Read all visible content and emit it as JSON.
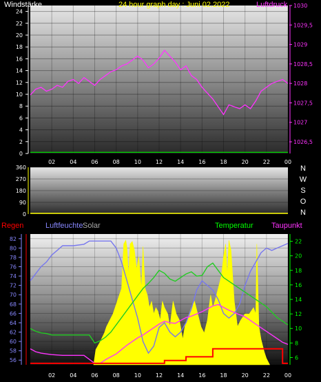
{
  "chart_data": [
    {
      "type": "line",
      "title": "24 hour graph day : Juni 02.2022",
      "left_axis_label": "Windstärke",
      "right_axis_label": "Luftdruck",
      "left_ticks": [
        "24",
        "22",
        "20",
        "18",
        "16",
        "14",
        "12",
        "10",
        "8",
        "6",
        "4",
        "2",
        "0"
      ],
      "left_range": [
        0,
        25
      ],
      "right_ticks": [
        "1030",
        "1029,5",
        "1029",
        "1028,5",
        "1028",
        "1027,5",
        "1027",
        "1026,5"
      ],
      "right_range": [
        1026.2,
        1030
      ],
      "x_ticks": [
        "02",
        "04",
        "06",
        "08",
        "10",
        "12",
        "14",
        "16",
        "18",
        "20",
        "22",
        "00"
      ],
      "x_range": [
        0,
        24
      ],
      "series": [
        {
          "name": "Luftdruck",
          "axis": "right",
          "color": "#ff33ff",
          "x": [
            0,
            0.5,
            1,
            1.5,
            2,
            2.5,
            3,
            3.5,
            4,
            4.5,
            5,
            5.5,
            6,
            6.5,
            7,
            7.5,
            8,
            8.5,
            9,
            9.5,
            10,
            10.5,
            11,
            11.5,
            12,
            12.5,
            13,
            13.5,
            14,
            14.5,
            15,
            15.5,
            16,
            16.5,
            17,
            17.5,
            18,
            18.5,
            19,
            19.5,
            20,
            20.5,
            21,
            21.5,
            22,
            22.5,
            23,
            23.5,
            24
          ],
          "y": [
            1027.7,
            1027.85,
            1027.9,
            1027.8,
            1027.85,
            1027.95,
            1027.9,
            1028.05,
            1028.1,
            1028.0,
            1028.15,
            1028.05,
            1027.95,
            1028.1,
            1028.2,
            1028.3,
            1028.35,
            1028.45,
            1028.5,
            1028.6,
            1028.7,
            1028.6,
            1028.4,
            1028.5,
            1028.65,
            1028.85,
            1028.7,
            1028.55,
            1028.35,
            1028.45,
            1028.2,
            1028.1,
            1027.9,
            1027.75,
            1027.6,
            1027.4,
            1027.2,
            1027.45,
            1027.4,
            1027.35,
            1027.45,
            1027.35,
            1027.55,
            1027.8,
            1027.9,
            1028.0,
            1028.05,
            1028.1,
            1028.0
          ]
        },
        {
          "name": "Windstärke",
          "axis": "left",
          "color": "#00cc00",
          "x": [
            0,
            24
          ],
          "y": [
            0.2,
            0.2
          ]
        }
      ]
    },
    {
      "type": "line",
      "title": "",
      "left_ticks": [
        "360",
        "270",
        "180",
        "90",
        "0"
      ],
      "left_range": [
        0,
        360
      ],
      "right_labels": [
        "N",
        "W",
        "S",
        "O",
        "N"
      ],
      "series": [
        {
          "name": "Windrichtung",
          "color": "#ffff00",
          "x": [
            0,
            24
          ],
          "y": [
            0,
            0
          ]
        }
      ]
    },
    {
      "type": "line",
      "title": "",
      "legend": [
        "Regen",
        "Luftfeuchte",
        "Solar",
        "Temperatur",
        "Taupunkt"
      ],
      "legend_colors": [
        "#ff0000",
        "#8888ff",
        "#aaaaaa",
        "#00ff00",
        "#ff33ff"
      ],
      "left_ticks": [
        "82",
        "80",
        "78",
        "76",
        "74",
        "72",
        "70",
        "68",
        "66",
        "64",
        "62",
        "60",
        "58",
        "56"
      ],
      "left_range": [
        55,
        83
      ],
      "right_ticks": [
        "22",
        "20",
        "18",
        "16",
        "14",
        "12",
        "10",
        "8",
        "6"
      ],
      "right_range": [
        5,
        23
      ],
      "x_ticks": [
        "02",
        "04",
        "06",
        "08",
        "10",
        "12",
        "14",
        "16",
        "18",
        "20",
        "22",
        "00"
      ],
      "x_range": [
        0,
        24
      ],
      "series": [
        {
          "name": "Luftfeuchte",
          "axis": "left",
          "color": "#7777ee",
          "x": [
            0,
            0.5,
            1,
            1.5,
            2,
            2.5,
            3,
            4,
            5,
            5.5,
            6,
            7,
            7.5,
            8,
            8.5,
            9,
            9.5,
            10,
            10.5,
            11,
            11.5,
            12,
            12.5,
            13,
            13.5,
            14,
            14.5,
            15,
            15.5,
            16,
            16.5,
            17,
            17.5,
            18,
            18.5,
            19,
            19.5,
            20,
            20.5,
            21,
            21.5,
            22,
            22.5,
            23,
            23.5,
            24
          ],
          "y": [
            73,
            74.5,
            76,
            77,
            78.5,
            79.5,
            80.5,
            80.5,
            80.8,
            81.5,
            81.5,
            81.5,
            81.5,
            80,
            77,
            73,
            69,
            65,
            60,
            57.5,
            59,
            63,
            64,
            62,
            61,
            62,
            64,
            67,
            71,
            73,
            72,
            71,
            69,
            66,
            65,
            66,
            68,
            72,
            75,
            77,
            79,
            80,
            79.5,
            80,
            80.5,
            81
          ]
        },
        {
          "name": "Temperatur",
          "axis": "right",
          "color": "#22cc22",
          "x": [
            0,
            0.5,
            1,
            1.5,
            2,
            3,
            4,
            5,
            5.5,
            6,
            6.5,
            7,
            7.5,
            8,
            8.5,
            9,
            9.5,
            10,
            10.5,
            11,
            11.5,
            12,
            12.5,
            13,
            13.5,
            14,
            14.5,
            15,
            15.5,
            16,
            16.5,
            17,
            17.5,
            18,
            18.5,
            19,
            20,
            21,
            22,
            23,
            24
          ],
          "y": [
            10,
            9.6,
            9.4,
            9.3,
            9.1,
            9.1,
            9.1,
            9.1,
            9.1,
            8,
            8.3,
            8.8,
            9.5,
            10.5,
            11.5,
            12.5,
            13.5,
            14.5,
            15.5,
            16.2,
            17,
            18,
            17.6,
            16.8,
            16.5,
            17,
            17.5,
            17.8,
            17.2,
            17.3,
            18.5,
            19,
            18,
            17,
            16.5,
            16,
            15,
            14,
            13,
            11.5,
            10.5
          ]
        },
        {
          "name": "Taupunkt",
          "axis": "right",
          "color": "#ff33ff",
          "x": [
            0,
            0.5,
            1,
            1.5,
            2,
            3,
            4,
            5,
            6,
            6.5,
            7,
            7.5,
            8,
            8.5,
            9,
            9.5,
            10,
            10.5,
            11,
            11.5,
            12,
            12.5,
            13,
            13.5,
            14,
            14.5,
            15,
            15.5,
            16,
            16.5,
            17,
            17.5,
            18,
            18.5,
            19,
            19.5,
            20,
            20.5,
            21,
            21.5,
            22,
            22.5,
            23,
            23.5,
            24
          ],
          "y": [
            7.2,
            6.8,
            6.6,
            6.5,
            6.4,
            6.3,
            6.3,
            6.3,
            5.2,
            5.2,
            5.7,
            6.1,
            6.5,
            7.1,
            7.7,
            8.2,
            8.7,
            9.1,
            9.6,
            10.1,
            10.6,
            11,
            10.8,
            10.7,
            11.1,
            11.5,
            11.7,
            12,
            12.3,
            12.7,
            13.1,
            13.3,
            12.9,
            12.5,
            12.2,
            11.9,
            11.6,
            11.1,
            10.6,
            10.1,
            9.6,
            9.1,
            8.6,
            8.1,
            7.8
          ]
        },
        {
          "name": "Regen",
          "axis": "right",
          "color": "#ff0000",
          "step": true,
          "x": [
            0,
            12.5,
            12.5,
            14.5,
            14.5,
            17,
            17,
            23.5,
            23.5,
            24
          ],
          "y": [
            5.2,
            5.2,
            5.6,
            5.6,
            6.1,
            6.1,
            7.2,
            7.2,
            5.2,
            5.2
          ]
        }
      ],
      "solar": {
        "name": "Solar",
        "color": "#ffff00",
        "x": [
          5.9,
          6.1,
          6.5,
          6.9,
          7.1,
          7.4,
          7.7,
          8.1,
          8.3,
          8.5,
          8.7,
          8.9,
          9.0,
          9.15,
          9.3,
          9.5,
          9.7,
          9.9,
          10.1,
          10.35,
          10.5,
          10.7,
          10.9,
          11.1,
          11.3,
          11.5,
          11.7,
          11.9,
          12.1,
          12.3,
          12.5,
          12.8,
          13.0,
          13.3,
          13.6,
          13.9,
          14.2,
          14.4,
          14.7,
          15.0,
          15.3,
          15.6,
          15.9,
          16.2,
          16.5,
          16.8,
          17.0,
          17.2,
          17.5,
          17.8,
          18.0,
          18.2,
          18.35,
          18.5,
          18.7,
          19.0,
          19.3,
          19.6,
          20.0,
          20.4,
          20.8,
          21.0,
          21.1,
          21.3,
          21.5,
          21.8,
          22.0,
          22.3
        ],
        "y": [
          0,
          0.12,
          0.18,
          0.25,
          0.3,
          0.35,
          0.4,
          0.5,
          0.55,
          0.6,
          0.95,
          0.98,
          0.92,
          0.7,
          0.95,
          0.97,
          0.9,
          0.75,
          0.85,
          0.6,
          0.93,
          0.6,
          0.55,
          0.45,
          0.5,
          0.4,
          0.45,
          0.42,
          0.35,
          0.5,
          0.45,
          0.4,
          0.3,
          0.5,
          0.4,
          0.35,
          0.2,
          0.3,
          0.38,
          0.45,
          0.5,
          0.4,
          0.3,
          0.25,
          0.35,
          0.55,
          0.45,
          0.5,
          0.6,
          0.7,
          0.85,
          0.95,
          0.7,
          0.98,
          0.9,
          0.5,
          0.3,
          0.35,
          0.4,
          0.4,
          0.45,
          0.4,
          0.95,
          0.3,
          0.2,
          0.1,
          0.05,
          0
        ]
      },
      "solar_max_y_right": 22.5
    }
  ]
}
